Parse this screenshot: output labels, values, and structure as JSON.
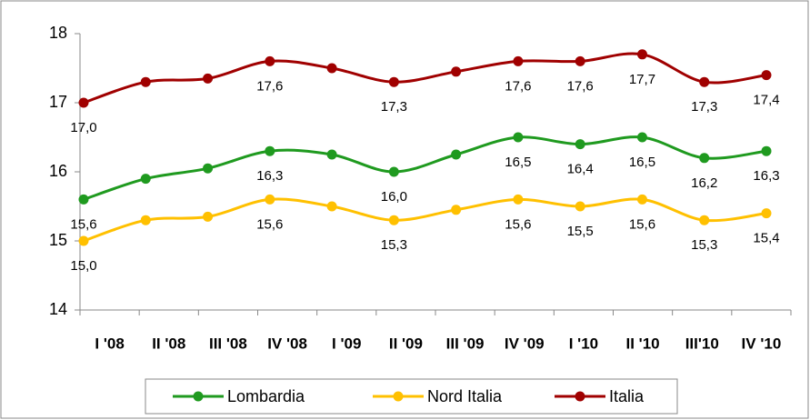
{
  "chart_data": {
    "type": "line",
    "categories": [
      "I '08",
      "II '08",
      "III '08",
      "IV '08",
      "I '09",
      "II '09",
      "III '09",
      "IV '09",
      "I '10",
      "II '10",
      "III'10",
      "IV '10"
    ],
    "series": [
      {
        "name": "Lombardia",
        "color": "#1f9a1f",
        "values": [
          15.6,
          15.9,
          16.05,
          16.3,
          16.25,
          16.0,
          16.25,
          16.5,
          16.4,
          16.5,
          16.2,
          16.3
        ],
        "value_labels": [
          "15,6",
          null,
          null,
          "16,3",
          null,
          "16,0",
          null,
          "16,5",
          "16,4",
          "16,5",
          "16,2",
          "16,3"
        ]
      },
      {
        "name": "Nord Italia",
        "color": "#ffc000",
        "values": [
          15.0,
          15.3,
          15.35,
          15.6,
          15.5,
          15.3,
          15.45,
          15.6,
          15.5,
          15.6,
          15.3,
          15.4
        ],
        "value_labels": [
          "15,0",
          null,
          null,
          "15,6",
          null,
          "15,3",
          null,
          "15,6",
          "15,5",
          "15,6",
          "15,3",
          "15,4"
        ]
      },
      {
        "name": "Italia",
        "color": "#a00000",
        "values": [
          17.0,
          17.3,
          17.35,
          17.6,
          17.5,
          17.3,
          17.45,
          17.6,
          17.6,
          17.7,
          17.3,
          17.4
        ],
        "value_labels": [
          "17,0",
          null,
          null,
          "17,6",
          null,
          "17,3",
          null,
          "17,6",
          "17,6",
          "17,7",
          "17,3",
          "17,4"
        ]
      }
    ],
    "ylim": [
      14,
      18
    ],
    "yticks": [
      14,
      15,
      16,
      17,
      18
    ],
    "grid": false,
    "legend": "bottom"
  }
}
